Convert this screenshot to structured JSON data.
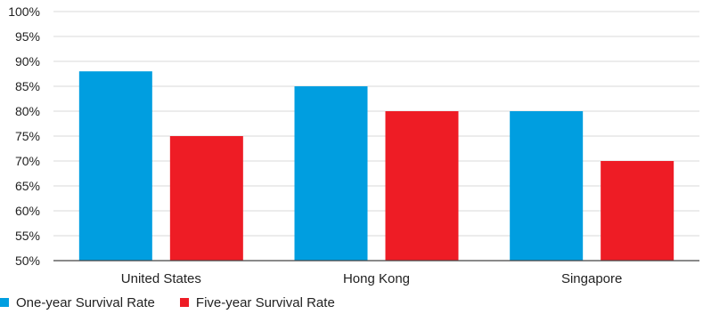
{
  "chart_data": {
    "type": "bar",
    "categories": [
      "United States",
      "Hong Kong",
      "Singapore"
    ],
    "series": [
      {
        "name": "One-year Survival Rate",
        "values": [
          88,
          85,
          80
        ],
        "color": "#009ee0"
      },
      {
        "name": "Five-year Survival Rate",
        "values": [
          75,
          80,
          70
        ],
        "color": "#ee1c25"
      }
    ],
    "ylim": [
      50,
      100
    ],
    "yticks": [
      "50%",
      "55%",
      "60%",
      "65%",
      "70%",
      "75%",
      "80%",
      "85%",
      "90%",
      "95%",
      "100%"
    ],
    "ytick_values": [
      50,
      55,
      60,
      65,
      70,
      75,
      80,
      85,
      90,
      95,
      100
    ],
    "grid": true,
    "legend_position": "bottom-left"
  }
}
